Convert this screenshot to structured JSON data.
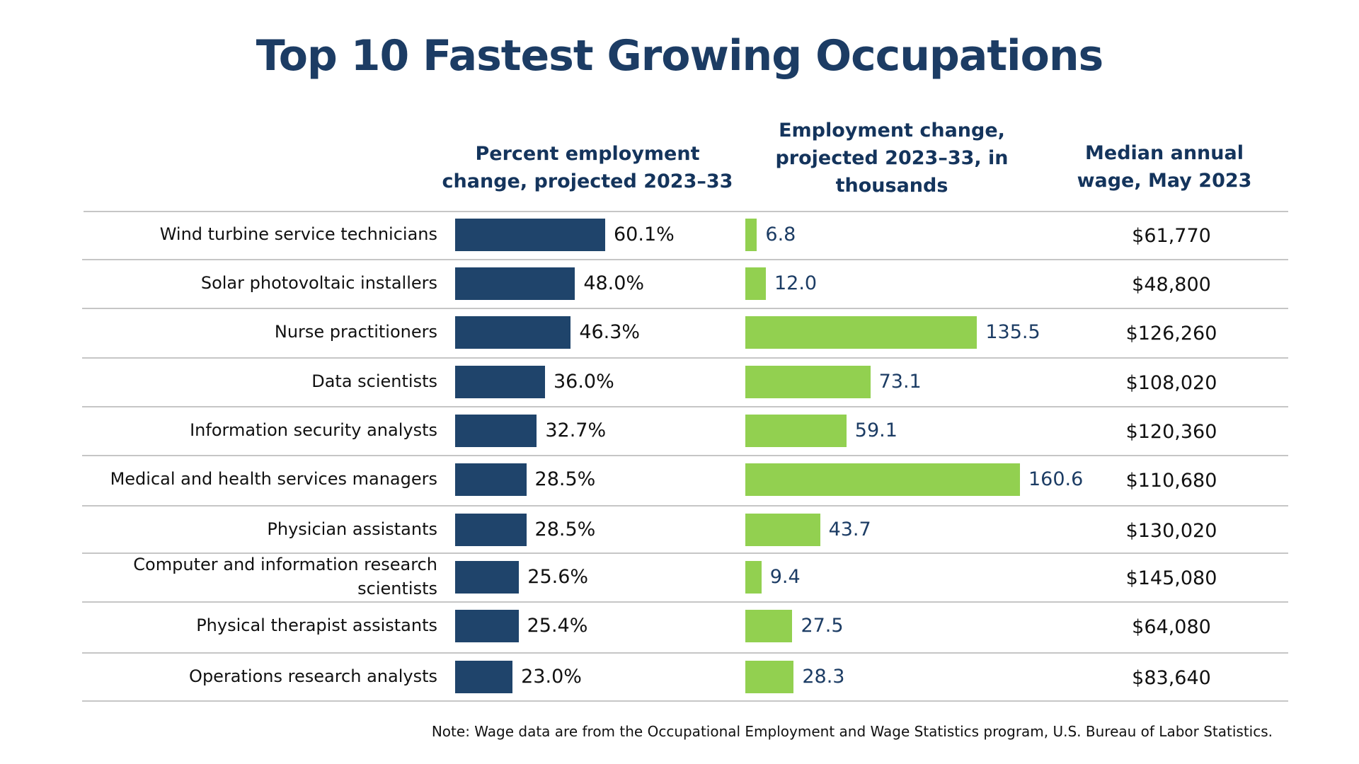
{
  "chart_data": {
    "type": "bar",
    "title": "Top 10 Fastest Growing Occupations",
    "columns": {
      "percent": "Percent employment change, projected 2023–33",
      "employment": "Employment change, projected 2023–33, in thousands",
      "wage": "Median annual wage, May 2023"
    },
    "categories": [
      [
        "Wind turbine service technicians"
      ],
      [
        "Solar photovoltaic installers"
      ],
      [
        "Nurse practitioners"
      ],
      [
        "Data scientists"
      ],
      [
        "Information security analysts"
      ],
      [
        "Medical and health services managers"
      ],
      [
        "Physician assistants"
      ],
      [
        "Computer and information research",
        "scientists"
      ],
      [
        "Physical therapist assistants"
      ],
      [
        "Operations research analysts"
      ]
    ],
    "series": [
      {
        "values": [
          60.1,
          48.0,
          46.3,
          36.0,
          32.7,
          28.5,
          28.5,
          25.6,
          25.4,
          23.0
        ],
        "labels": [
          "60.1%",
          "48.0%",
          "46.3%",
          "36.0%",
          "32.7%",
          "28.5%",
          "28.5%",
          "25.6%",
          "25.4%",
          "23.0%"
        ],
        "color": "#1f446b"
      },
      {
        "values": [
          6.8,
          12.0,
          135.5,
          73.1,
          59.1,
          160.6,
          43.7,
          9.4,
          27.5,
          28.3
        ],
        "labels": [
          "6.8",
          "12.0",
          "135.5",
          "73.1",
          "59.1",
          "160.6",
          "43.7",
          "9.4",
          "27.5",
          "28.3"
        ],
        "color": "#92d050"
      }
    ],
    "wages": [
      "$61,770",
      "$48,800",
      "$126,260",
      "$108,020",
      "$120,360",
      "$110,680",
      "$130,020",
      "$145,080",
      "$64,080",
      "$83,640"
    ],
    "note": "Note: Wage data are from the Occupational Employment and Wage Statistics program, U.S. Bureau of Labor Statistics."
  }
}
